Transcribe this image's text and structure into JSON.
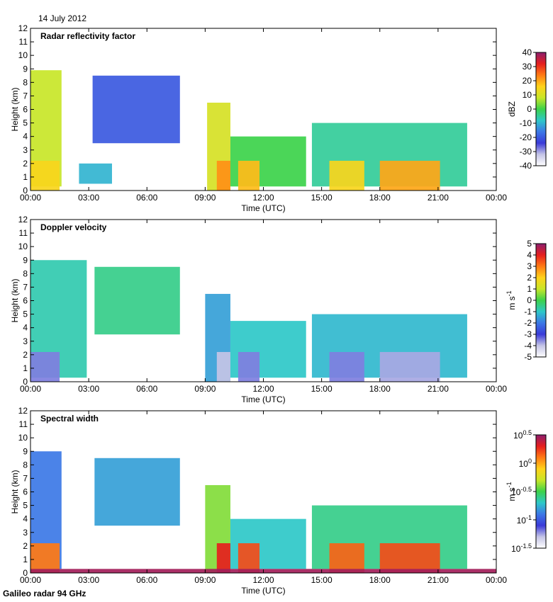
{
  "header": {
    "date": "14 July 2012"
  },
  "footer": {
    "credit": "Galileo radar 94 GHz"
  },
  "colors": {
    "field_ramp": [
      "#ffffff",
      "#c4c4e6",
      "#3a3ad8",
      "#3c78e6",
      "#2ec8c8",
      "#3cd24a",
      "#c8e628",
      "#ffd21a",
      "#ff7a14",
      "#e61e1e",
      "#8c1e6e"
    ]
  },
  "chart_data": [
    {
      "type": "heatmap",
      "title": "Radar reflectivity factor",
      "xlabel": "Time (UTC)",
      "ylabel": "Height (km)",
      "x_ticks": [
        "00:00",
        "03:00",
        "06:00",
        "09:00",
        "12:00",
        "15:00",
        "18:00",
        "21:00",
        "00:00"
      ],
      "x_range_hours": [
        0,
        24
      ],
      "y_ticks": [
        0,
        1,
        2,
        3,
        4,
        5,
        6,
        7,
        8,
        9,
        10,
        11,
        12
      ],
      "ylim": [
        0,
        12
      ],
      "colorbar": {
        "label": "dBZ",
        "min": -40,
        "max": 40,
        "ticks": [
          "40",
          "30",
          "20",
          "10",
          "0",
          "-10",
          "-20",
          "-30",
          "-40"
        ]
      },
      "features": [
        {
          "desc": "deep cloud",
          "t_start": 0.0,
          "t_end": 1.6,
          "base_km": 0.3,
          "top_km": 8.9,
          "value": 8
        },
        {
          "desc": "drizzle layer",
          "t_start": 0.0,
          "t_end": 1.5,
          "base_km": 0.0,
          "top_km": 2.2,
          "value": 15
        },
        {
          "desc": "mid-level cloud",
          "t_start": 3.2,
          "t_end": 7.7,
          "base_km": 3.5,
          "top_km": 8.5,
          "value": -20
        },
        {
          "desc": "low cloud",
          "t_start": 2.5,
          "t_end": 4.2,
          "base_km": 0.5,
          "top_km": 2.0,
          "value": -10
        },
        {
          "desc": "convective plume",
          "t_start": 9.1,
          "t_end": 10.3,
          "base_km": 0.0,
          "top_km": 6.5,
          "value": 10
        },
        {
          "desc": "rain",
          "t_start": 9.6,
          "t_end": 10.3,
          "base_km": 0.0,
          "top_km": 2.2,
          "value": 22
        },
        {
          "desc": "cloud",
          "t_start": 10.3,
          "t_end": 14.2,
          "base_km": 0.3,
          "top_km": 4.0,
          "value": 0
        },
        {
          "desc": "rain",
          "t_start": 10.7,
          "t_end": 11.8,
          "base_km": 0.0,
          "top_km": 2.2,
          "value": 18
        },
        {
          "desc": "cloud system",
          "t_start": 14.5,
          "t_end": 22.5,
          "base_km": 0.3,
          "top_km": 5.0,
          "value": -5
        },
        {
          "desc": "rain",
          "t_start": 15.4,
          "t_end": 17.2,
          "base_km": 0.0,
          "top_km": 2.2,
          "value": 15
        },
        {
          "desc": "rain",
          "t_start": 18.0,
          "t_end": 21.1,
          "base_km": 0.0,
          "top_km": 2.2,
          "value": 20
        }
      ]
    },
    {
      "type": "heatmap",
      "title": "Doppler velocity",
      "xlabel": "Time (UTC)",
      "ylabel": "Height (km)",
      "x_ticks": [
        "00:00",
        "03:00",
        "06:00",
        "09:00",
        "12:00",
        "15:00",
        "18:00",
        "21:00",
        "00:00"
      ],
      "x_range_hours": [
        0,
        24
      ],
      "y_ticks": [
        0,
        1,
        2,
        3,
        4,
        5,
        6,
        7,
        8,
        9,
        10,
        11,
        12
      ],
      "ylim": [
        0,
        12
      ],
      "colorbar": {
        "label": "m s-1",
        "label_base": "m s",
        "label_exp": "-1",
        "min": -5,
        "max": 5,
        "ticks": [
          "5",
          "4",
          "3",
          "2",
          "1",
          "0",
          "-1",
          "-2",
          "-3",
          "-4",
          "-5"
        ]
      },
      "features": [
        {
          "desc": "cloud",
          "t_start": 0.0,
          "t_end": 2.9,
          "base_km": 0.3,
          "top_km": 9.0,
          "value": -0.8
        },
        {
          "desc": "precipitation",
          "t_start": 0.0,
          "t_end": 1.5,
          "base_km": 0.0,
          "top_km": 2.2,
          "value": -3.5
        },
        {
          "desc": "mid-level cloud",
          "t_start": 3.3,
          "t_end": 7.7,
          "base_km": 3.5,
          "top_km": 8.5,
          "value": -0.5
        },
        {
          "desc": "convective plume",
          "t_start": 9.0,
          "t_end": 10.3,
          "base_km": 0.0,
          "top_km": 6.5,
          "value": -1.5
        },
        {
          "desc": "rain",
          "t_start": 9.6,
          "t_end": 10.3,
          "base_km": 0.0,
          "top_km": 2.2,
          "value": -4.0
        },
        {
          "desc": "cloud",
          "t_start": 10.3,
          "t_end": 14.2,
          "base_km": 0.3,
          "top_km": 4.5,
          "value": -1.0
        },
        {
          "desc": "rain",
          "t_start": 10.7,
          "t_end": 11.8,
          "base_km": 0.0,
          "top_km": 2.2,
          "value": -3.5
        },
        {
          "desc": "cloud system",
          "t_start": 14.5,
          "t_end": 22.5,
          "base_km": 0.3,
          "top_km": 5.0,
          "value": -1.2
        },
        {
          "desc": "rain",
          "t_start": 15.4,
          "t_end": 17.2,
          "base_km": 0.0,
          "top_km": 2.2,
          "value": -3.5
        },
        {
          "desc": "rain",
          "t_start": 18.0,
          "t_end": 21.1,
          "base_km": 0.0,
          "top_km": 2.2,
          "value": -3.8
        }
      ]
    },
    {
      "type": "heatmap",
      "title": "Spectral width",
      "xlabel": "Time (UTC)",
      "ylabel": "Height (km)",
      "x_ticks": [
        "00:00",
        "03:00",
        "06:00",
        "09:00",
        "12:00",
        "15:00",
        "18:00",
        "21:00",
        "00:00"
      ],
      "x_range_hours": [
        0,
        24
      ],
      "y_ticks": [
        0,
        1,
        2,
        3,
        4,
        5,
        6,
        7,
        8,
        9,
        10,
        11,
        12
      ],
      "ylim": [
        0,
        12
      ],
      "colorbar": {
        "label": "m s-1",
        "label_base": "m s",
        "label_exp": "-1",
        "scale": "log",
        "min_exp": -1.5,
        "max_exp": 0.5,
        "ticks": [
          {
            "base": "10",
            "exp": "0.5"
          },
          {
            "base": "10",
            "exp": "0"
          },
          {
            "base": "10",
            "exp": "-0.5"
          },
          {
            "base": "10",
            "exp": "-1"
          },
          {
            "base": "10",
            "exp": "-1.5"
          }
        ]
      },
      "features": [
        {
          "desc": "cloud",
          "t_start": 0.0,
          "t_end": 1.6,
          "base_km": 0.3,
          "top_km": 9.0,
          "value": -0.9
        },
        {
          "desc": "drizzle layer",
          "t_start": 0.0,
          "t_end": 1.5,
          "base_km": 0.0,
          "top_km": 2.2,
          "value": 0.1
        },
        {
          "desc": "mid-level cloud",
          "t_start": 3.3,
          "t_end": 7.7,
          "base_km": 3.5,
          "top_km": 8.5,
          "value": -0.8
        },
        {
          "desc": "convective plume",
          "t_start": 9.0,
          "t_end": 10.3,
          "base_km": 0.0,
          "top_km": 6.5,
          "value": -0.4
        },
        {
          "desc": "rain",
          "t_start": 9.6,
          "t_end": 10.3,
          "base_km": 0.0,
          "top_km": 2.2,
          "value": 0.3
        },
        {
          "desc": "cloud",
          "t_start": 10.3,
          "t_end": 14.2,
          "base_km": 0.3,
          "top_km": 4.0,
          "value": -0.7
        },
        {
          "desc": "rain",
          "t_start": 10.7,
          "t_end": 11.8,
          "base_km": 0.0,
          "top_km": 2.2,
          "value": 0.2
        },
        {
          "desc": "cloud system",
          "t_start": 14.5,
          "t_end": 22.5,
          "base_km": 0.3,
          "top_km": 5.0,
          "value": -0.6
        },
        {
          "desc": "rain",
          "t_start": 15.4,
          "t_end": 17.2,
          "base_km": 0.0,
          "top_km": 2.2,
          "value": 0.15
        },
        {
          "desc": "rain",
          "t_start": 18.0,
          "t_end": 21.1,
          "base_km": 0.0,
          "top_km": 2.2,
          "value": 0.2
        },
        {
          "desc": "surface clutter",
          "t_start": 0.0,
          "t_end": 24.0,
          "base_km": 0.0,
          "top_km": 0.3,
          "value": 0.45
        }
      ]
    }
  ]
}
